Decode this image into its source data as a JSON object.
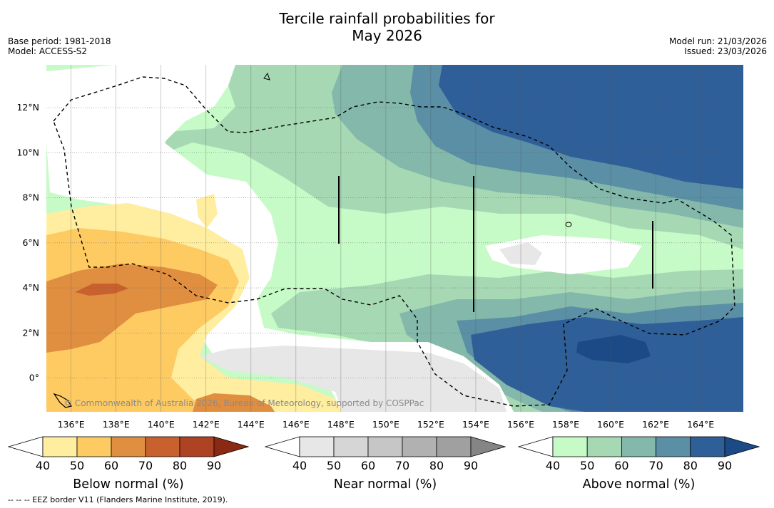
{
  "title": {
    "line1": "Tercile rainfall probabilities for",
    "line2": "May 2026"
  },
  "meta": {
    "base_period": "Base period: 1981-2018",
    "model": "Model: ACCESS-S2",
    "model_run": "Model run: 21/03/2026",
    "issued": "Issued: 23/03/2026"
  },
  "map": {
    "lon_range": [
      134.9,
      165.9
    ],
    "lat_range": [
      -1.5,
      13.9
    ],
    "lon_ticks": [
      "136°E",
      "138°E",
      "140°E",
      "142°E",
      "144°E",
      "146°E",
      "148°E",
      "150°E",
      "152°E",
      "154°E",
      "156°E",
      "158°E",
      "160°E",
      "162°E",
      "164°E"
    ],
    "lon_values": [
      136,
      138,
      140,
      142,
      144,
      146,
      148,
      150,
      152,
      154,
      156,
      158,
      160,
      162,
      164
    ],
    "lat_ticks": [
      "12°N",
      "10°N",
      "8°N",
      "6°N",
      "4°N",
      "2°N",
      "0°"
    ],
    "lat_values": [
      12,
      10,
      8,
      6,
      4,
      2,
      0
    ],
    "copyright": "© Commonwealth of Australia 2026, Bureau of Meteorology, supported by COSPPac"
  },
  "colorbars": [
    {
      "label": "Below normal (%)",
      "ticks": [
        "40",
        "50",
        "60",
        "70",
        "80",
        "90"
      ],
      "colors": [
        "#ffeda0",
        "#fecb63",
        "#e08e40",
        "#c9612f",
        "#ad4322",
        "#8b2a14"
      ]
    },
    {
      "label": "Near normal (%)",
      "ticks": [
        "40",
        "50",
        "60",
        "70",
        "80",
        "90"
      ],
      "colors": [
        "#e7e7e7",
        "#d6d6d6",
        "#c6c6c6",
        "#b1b1b1",
        "#a0a0a0",
        "#858585"
      ]
    },
    {
      "label": "Above normal (%)",
      "ticks": [
        "40",
        "50",
        "60",
        "70",
        "80",
        "90"
      ],
      "colors": [
        "#c6fac6",
        "#a6d8b4",
        "#83b8ab",
        "#5a8fa5",
        "#2f5f98",
        "#1b4a86"
      ]
    }
  ],
  "footnote": "--  --  -- EEZ border V11 (Flanders Marine Institute, 2019)."
}
